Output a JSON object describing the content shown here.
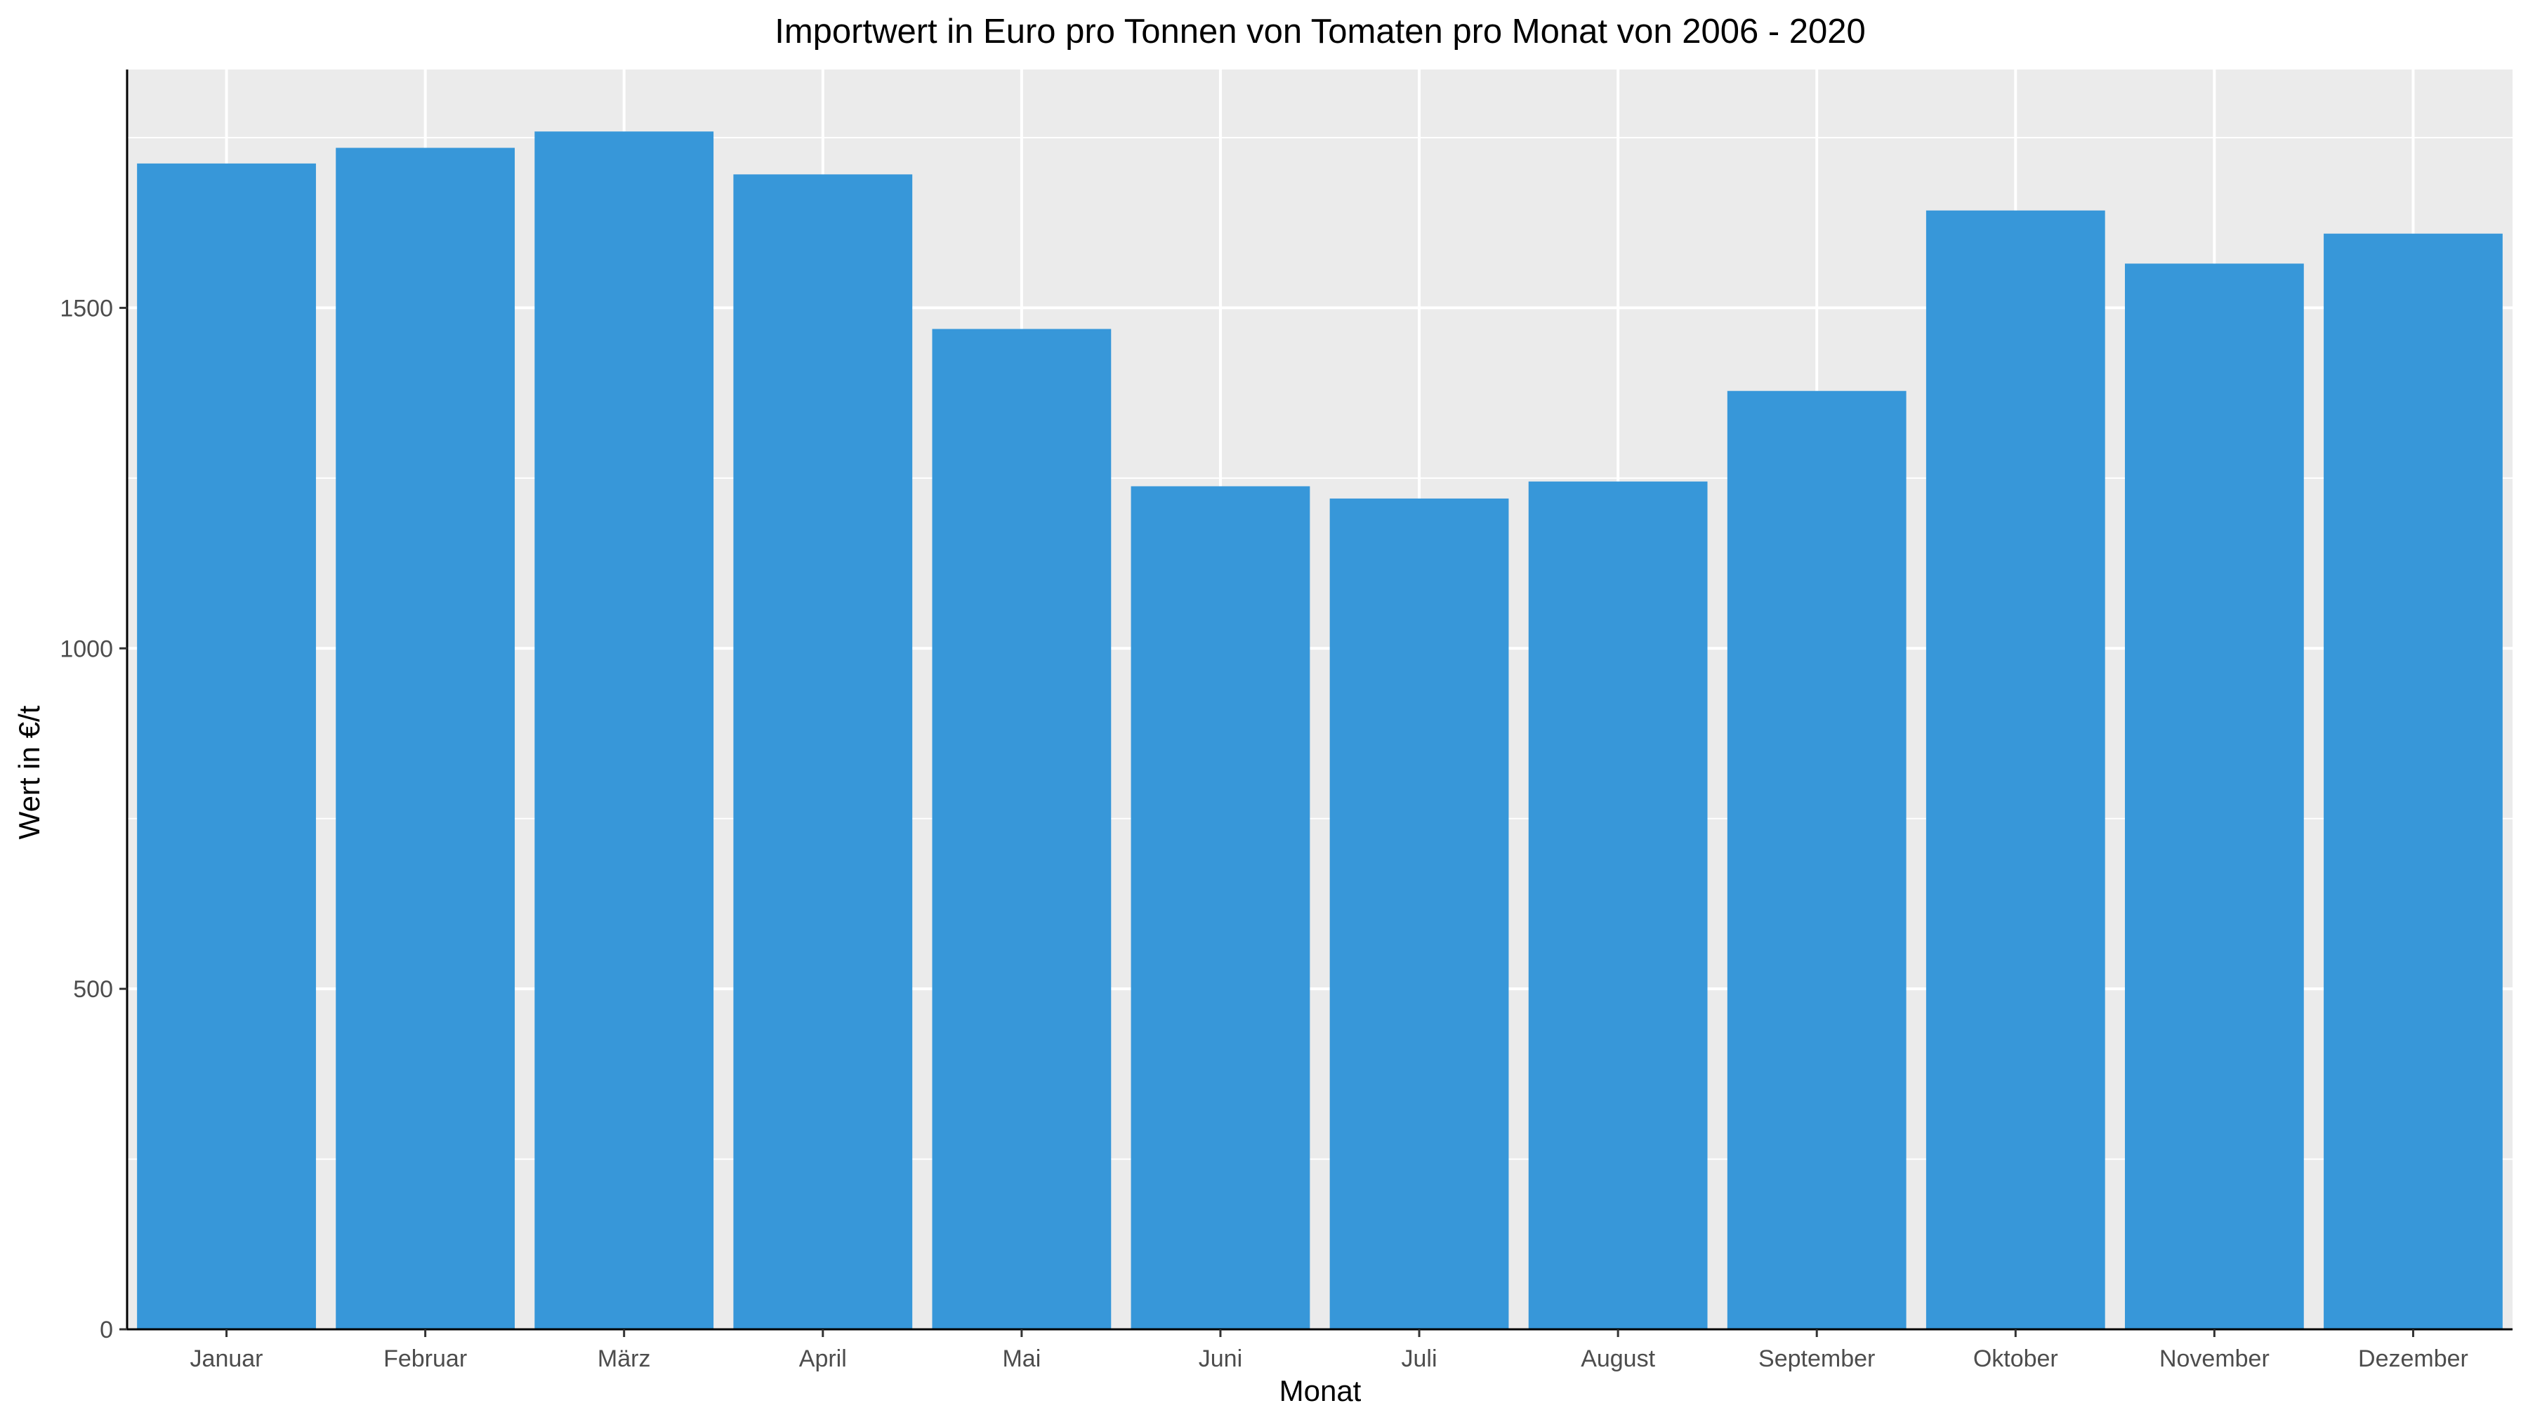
{
  "chart_data": {
    "type": "bar",
    "title": "Importwert in Euro pro Tonnen von Tomaten pro Monat von 2006 - 2020",
    "xlabel": "Monat",
    "ylabel": "Wert in €/t",
    "categories": [
      "Januar",
      "Februar",
      "März",
      "April",
      "Mai",
      "Juni",
      "Juli",
      "August",
      "September",
      "Oktober",
      "November",
      "Dezember"
    ],
    "values": [
      1712,
      1735,
      1759,
      1696,
      1469,
      1238,
      1220,
      1245,
      1378,
      1643,
      1565,
      1609
    ],
    "ylim": [
      0,
      1850
    ],
    "yticks": [
      0,
      500,
      1000,
      1500
    ],
    "grid": true,
    "legend": "none",
    "colors": {
      "bar": "#3797d9",
      "panel": "#ebebeb",
      "grid": "#ffffff",
      "axis": "#000000",
      "tick_text": "#4d4d4d"
    }
  }
}
